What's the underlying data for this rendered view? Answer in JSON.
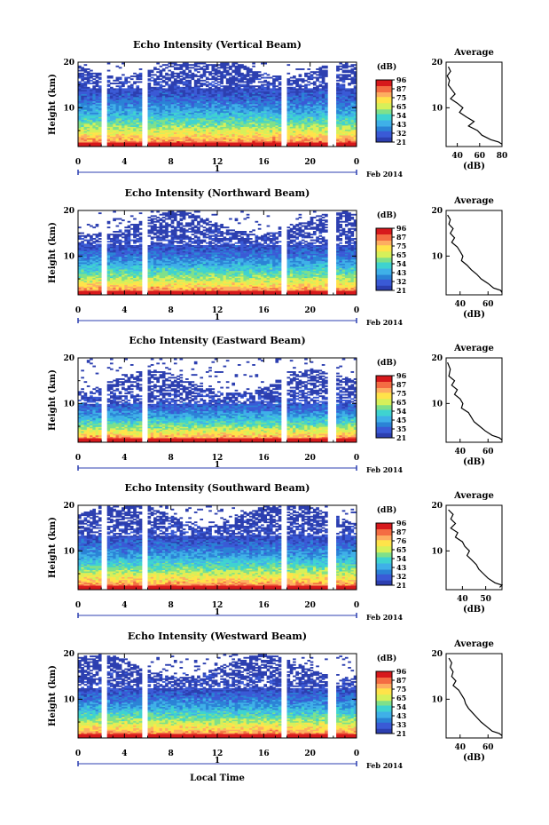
{
  "figure": {
    "bottom_xlabel": "Local Time",
    "date_label": "Feb 2014",
    "day_marker": "1",
    "average_title": "Average",
    "average_xlabel": "(dB)",
    "colorbar_unit": "(dB)",
    "ylabel": "Height (km)"
  },
  "chart_data": [
    {
      "type": "heatmap",
      "title": "Echo Intensity (Vertical Beam)",
      "xlabel": "Local Time",
      "ylabel": "Height (km)",
      "x_ticks": [
        "0",
        "4",
        "8",
        "12",
        "16",
        "20",
        "0"
      ],
      "xlim": [
        0,
        24
      ],
      "y_ticks": [
        "10",
        "20"
      ],
      "ylim": [
        1.5,
        20
      ],
      "colorbar": {
        "label": "(dB)",
        "ticks": [
          "96",
          "87",
          "75",
          "65",
          "54",
          "43",
          "32",
          "21"
        ],
        "colors": [
          "#d7191c",
          "#fdae61",
          "#ffff8c",
          "#a6e35a",
          "#3fd3d0",
          "#2b83d6",
          "#2c3fb0"
        ]
      },
      "data_gaps_hours": [
        [
          2.0,
          2.5
        ],
        [
          5.5,
          6.1
        ],
        [
          17.5,
          18.1
        ],
        [
          21.6,
          22.2
        ]
      ],
      "top_height_km": 19.5
    },
    {
      "type": "line",
      "title": "Average",
      "xlabel": "(dB)",
      "x_ticks": [
        "40",
        "60",
        "80"
      ],
      "xlim": [
        30,
        80
      ],
      "y_ticks": [
        "10",
        "20"
      ],
      "ylim": [
        1.5,
        20
      ],
      "points": [
        [
          32,
          19
        ],
        [
          34,
          18
        ],
        [
          31,
          17
        ],
        [
          33,
          16
        ],
        [
          32,
          15
        ],
        [
          35,
          14
        ],
        [
          38,
          13
        ],
        [
          34,
          12
        ],
        [
          40,
          11
        ],
        [
          45,
          10
        ],
        [
          42,
          9
        ],
        [
          48,
          8
        ],
        [
          55,
          7
        ],
        [
          50,
          6
        ],
        [
          58,
          5
        ],
        [
          62,
          4
        ],
        [
          70,
          3
        ],
        [
          77,
          2.5
        ],
        [
          80,
          2
        ]
      ]
    },
    {
      "type": "heatmap",
      "title": "Echo Intensity (Northward Beam)",
      "xlabel": "Local Time",
      "ylabel": "Height (km)",
      "x_ticks": [
        "0",
        "4",
        "8",
        "12",
        "16",
        "20",
        "0"
      ],
      "xlim": [
        0,
        24
      ],
      "y_ticks": [
        "10",
        "20"
      ],
      "ylim": [
        1.5,
        20
      ],
      "colorbar": {
        "label": "(dB)",
        "ticks": [
          "96",
          "87",
          "75",
          "65",
          "54",
          "43",
          "32",
          "21"
        ],
        "colors": [
          "#d7191c",
          "#fdae61",
          "#ffff8c",
          "#a6e35a",
          "#3fd3d0",
          "#2b83d6",
          "#2c3fb0"
        ]
      },
      "data_gaps_hours": [
        [
          2.0,
          2.5
        ],
        [
          5.5,
          6.1
        ],
        [
          17.5,
          18.1
        ],
        [
          21.6,
          22.2
        ]
      ],
      "top_height_km": 17.5
    },
    {
      "type": "line",
      "title": "Average",
      "xlabel": "(dB)",
      "x_ticks": [
        "40",
        "60"
      ],
      "xlim": [
        30,
        70
      ],
      "y_ticks": [
        "10",
        "20"
      ],
      "ylim": [
        1.5,
        20
      ],
      "points": [
        [
          31,
          19
        ],
        [
          33,
          18
        ],
        [
          32,
          17
        ],
        [
          35,
          16
        ],
        [
          33,
          15
        ],
        [
          36,
          14
        ],
        [
          34,
          13
        ],
        [
          38,
          12
        ],
        [
          40,
          11
        ],
        [
          42,
          10
        ],
        [
          41,
          9
        ],
        [
          45,
          8
        ],
        [
          48,
          7
        ],
        [
          52,
          6
        ],
        [
          55,
          5
        ],
        [
          60,
          4
        ],
        [
          64,
          3
        ],
        [
          69,
          2.5
        ],
        [
          70,
          2
        ]
      ]
    },
    {
      "type": "heatmap",
      "title": "Echo Intensity (Eastward Beam)",
      "xlabel": "Local Time",
      "ylabel": "Height (km)",
      "x_ticks": [
        "0",
        "4",
        "8",
        "12",
        "16",
        "20",
        "0"
      ],
      "xlim": [
        0,
        24
      ],
      "y_ticks": [
        "10",
        "20"
      ],
      "ylim": [
        1.5,
        20
      ],
      "colorbar": {
        "label": "(dB)",
        "ticks": [
          "96",
          "87",
          "75",
          "65",
          "54",
          "45",
          "35",
          "21"
        ],
        "colors": [
          "#d7191c",
          "#fdae61",
          "#ffff8c",
          "#a6e35a",
          "#3fd3d0",
          "#2b83d6",
          "#2c3fb0"
        ]
      },
      "data_gaps_hours": [
        [
          2.0,
          2.5
        ],
        [
          5.5,
          6.1
        ],
        [
          17.5,
          18.1
        ],
        [
          21.6,
          22.2
        ]
      ],
      "top_height_km": 15
    },
    {
      "type": "line",
      "title": "Average",
      "xlabel": "(dB)",
      "x_ticks": [
        "40",
        "60"
      ],
      "xlim": [
        30,
        70
      ],
      "y_ticks": [
        "10",
        "20"
      ],
      "ylim": [
        1.5,
        20
      ],
      "points": [
        [
          31,
          19
        ],
        [
          33,
          17.5
        ],
        [
          32,
          16
        ],
        [
          36,
          15
        ],
        [
          34,
          14
        ],
        [
          38,
          13
        ],
        [
          36,
          12
        ],
        [
          40,
          11
        ],
        [
          42,
          10
        ],
        [
          41,
          9
        ],
        [
          46,
          8
        ],
        [
          48,
          7
        ],
        [
          50,
          6
        ],
        [
          54,
          5
        ],
        [
          58,
          4
        ],
        [
          63,
          3
        ],
        [
          68,
          2.5
        ],
        [
          70,
          2
        ]
      ]
    },
    {
      "type": "heatmap",
      "title": "Echo Intensity (Southward Beam)",
      "xlabel": "Local Time",
      "ylabel": "Height (km)",
      "x_ticks": [
        "0",
        "4",
        "8",
        "12",
        "16",
        "20",
        "0"
      ],
      "xlim": [
        0,
        24
      ],
      "y_ticks": [
        "10",
        "20"
      ],
      "ylim": [
        1.5,
        20
      ],
      "colorbar": {
        "label": "(dB)",
        "ticks": [
          "96",
          "87",
          "76",
          "65",
          "54",
          "43",
          "32",
          "21"
        ],
        "colors": [
          "#d7191c",
          "#fdae61",
          "#ffff8c",
          "#a6e35a",
          "#3fd3d0",
          "#2b83d6",
          "#2c3fb0"
        ]
      },
      "data_gaps_hours": [
        [
          2.0,
          2.5
        ],
        [
          5.5,
          6.1
        ],
        [
          17.5,
          18.1
        ],
        [
          21.6,
          22.2
        ]
      ],
      "top_height_km": 18.5
    },
    {
      "type": "line",
      "title": "Average",
      "xlabel": "(dB)",
      "x_ticks": [
        "40",
        "50"
      ],
      "xlim": [
        33,
        57
      ],
      "y_ticks": [
        "10",
        "20"
      ],
      "ylim": [
        1.5,
        20
      ],
      "points": [
        [
          34,
          19
        ],
        [
          36,
          18
        ],
        [
          35,
          17
        ],
        [
          37,
          16
        ],
        [
          35,
          15
        ],
        [
          38,
          14
        ],
        [
          37,
          13
        ],
        [
          40,
          12
        ],
        [
          41,
          11
        ],
        [
          43,
          10
        ],
        [
          42,
          9
        ],
        [
          44,
          8
        ],
        [
          46,
          7
        ],
        [
          47,
          6
        ],
        [
          49,
          5
        ],
        [
          51,
          4
        ],
        [
          54,
          3
        ],
        [
          57,
          2.5
        ],
        [
          56,
          2
        ]
      ]
    },
    {
      "type": "heatmap",
      "title": "Echo Intensity (Westward Beam)",
      "xlabel": "Local Time",
      "ylabel": "Height (km)",
      "x_ticks": [
        "0",
        "4",
        "8",
        "12",
        "16",
        "20",
        "0"
      ],
      "xlim": [
        0,
        24
      ],
      "y_ticks": [
        "10",
        "20"
      ],
      "ylim": [
        1.5,
        20
      ],
      "colorbar": {
        "label": "(dB)",
        "ticks": [
          "96",
          "87",
          "75",
          "65",
          "54",
          "43",
          "33",
          "21"
        ],
        "colors": [
          "#d7191c",
          "#fdae61",
          "#ffff8c",
          "#a6e35a",
          "#3fd3d0",
          "#2b83d6",
          "#2c3fb0"
        ]
      },
      "data_gaps_hours": [
        [
          2.0,
          2.5
        ],
        [
          5.5,
          6.1
        ],
        [
          17.5,
          18.1
        ],
        [
          21.6,
          22.2
        ]
      ],
      "top_height_km": 17.5
    },
    {
      "type": "line",
      "title": "Average",
      "xlabel": "(dB)",
      "x_ticks": [
        "40",
        "60"
      ],
      "xlim": [
        30,
        70
      ],
      "y_ticks": [
        "10",
        "20"
      ],
      "ylim": [
        1.5,
        20
      ],
      "points": [
        [
          32,
          19
        ],
        [
          34,
          18
        ],
        [
          33,
          17
        ],
        [
          35,
          16
        ],
        [
          34,
          15
        ],
        [
          37,
          14
        ],
        [
          35,
          13
        ],
        [
          39,
          12
        ],
        [
          41,
          11
        ],
        [
          43,
          10
        ],
        [
          44,
          9
        ],
        [
          46,
          8
        ],
        [
          49,
          7
        ],
        [
          52,
          6
        ],
        [
          55,
          5
        ],
        [
          59,
          4
        ],
        [
          63,
          3
        ],
        [
          68,
          2.5
        ],
        [
          70,
          2
        ]
      ]
    }
  ]
}
